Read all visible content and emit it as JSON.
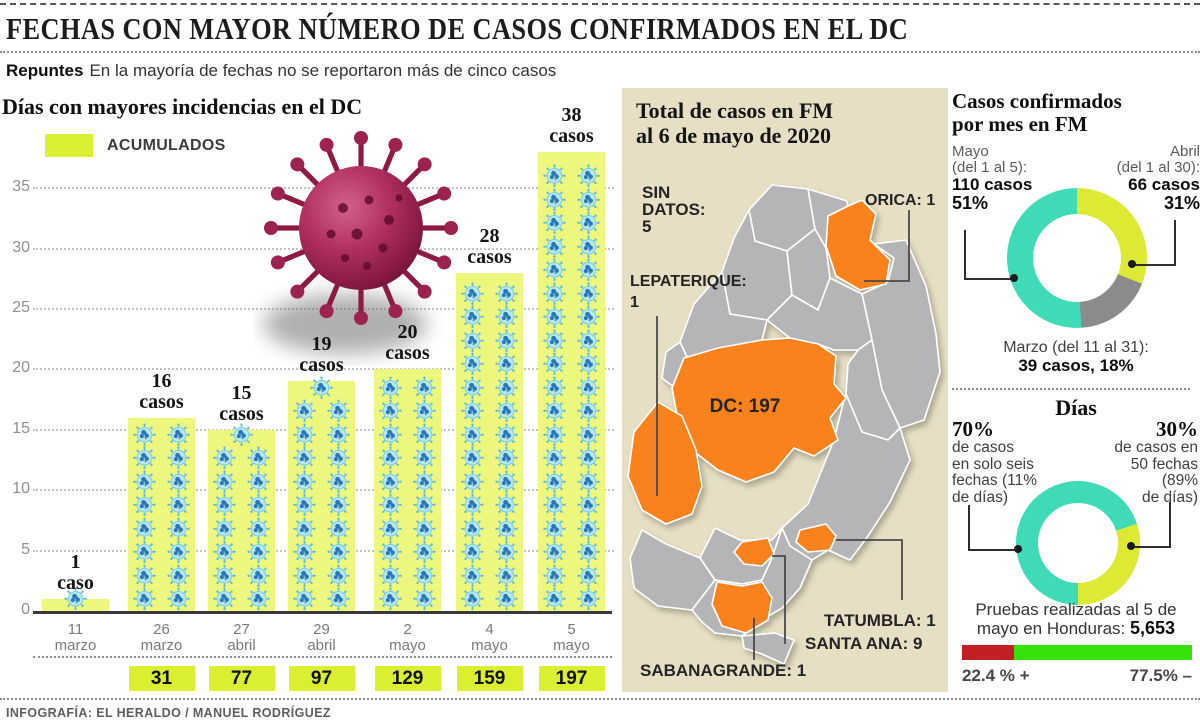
{
  "header": {
    "title": "FECHAS CON MAYOR NÚMERO DE CASOS CONFIRMADOS EN EL DC",
    "subtitle_bold": "Repuntes",
    "subtitle_rest": "En la mayoría de fechas no se reportaron más de cinco casos"
  },
  "colors": {
    "bar_fill": "#edf77d",
    "highlight_yellow": "#d9ef2f",
    "donut_teal": "#3edbb6",
    "donut_yellow": "#dcea33",
    "donut_gray": "#8b8b8b",
    "map_orange": "#f9821d",
    "map_gray": "#b5b5b7",
    "map_background": "#e6dfc4",
    "tests_positive_red": "#c32026",
    "tests_negative_green": "#35e20a"
  },
  "chart_data": [
    {
      "type": "bar",
      "title": "Días con mayores incidencias en el DC",
      "legend": "ACUMULADOS",
      "ylim": [
        0,
        35
      ],
      "yticks": [
        0,
        5,
        10,
        15,
        20,
        25,
        30,
        35
      ],
      "grid": "dotted-horizontal",
      "bar_color": "#edf77d",
      "icon": "virus-icon",
      "bars": [
        {
          "day": "11",
          "month": "marzo",
          "value": 1,
          "label": [
            "1",
            "caso"
          ],
          "cumulative": null
        },
        {
          "day": "26",
          "month": "marzo",
          "value": 16,
          "label": [
            "16",
            "casos"
          ],
          "cumulative": "31"
        },
        {
          "day": "27",
          "month": "abril",
          "value": 15,
          "label": [
            "15",
            "casos"
          ],
          "cumulative": "77"
        },
        {
          "day": "29",
          "month": "abril",
          "value": 19,
          "label": [
            "19",
            "casos"
          ],
          "cumulative": "97"
        },
        {
          "day": "2",
          "month": "mayo",
          "value": 20,
          "label": [
            "20",
            "casos"
          ],
          "cumulative": "129"
        },
        {
          "day": "4",
          "month": "mayo",
          "value": 28,
          "label": [
            "28",
            "casos"
          ],
          "cumulative": "159"
        },
        {
          "day": "5",
          "month": "mayo",
          "value": 38,
          "label": [
            "38",
            "casos"
          ],
          "cumulative": "197"
        }
      ]
    },
    {
      "type": "donut",
      "title": "Casos confirmados por mes en FM",
      "slices": [
        {
          "label": "Mayo (del 1 al 5)",
          "cases": 110,
          "pct": 51,
          "color": "#3edbb6"
        },
        {
          "label": "Abril (del 1 al 30)",
          "cases": 66,
          "pct": 31,
          "color": "#dcea33"
        },
        {
          "label": "Marzo (del 11 al 31)",
          "cases": 39,
          "pct": 18,
          "color": "#8b8b8b"
        }
      ],
      "segments_clockwise_from_top": [
        {
          "pct": 31,
          "color": "#dcea33"
        },
        {
          "pct": 18,
          "color": "#8b8b8b"
        },
        {
          "pct": 51,
          "color": "#3edbb6"
        }
      ]
    },
    {
      "type": "donut",
      "title": "Días",
      "slices": [
        {
          "label": "70% de casos en solo seis fechas (11% de días)",
          "pct": 70,
          "color": "#3edbb6"
        },
        {
          "label": "30% de casos en 50 fechas (89% de días)",
          "pct": 30,
          "color": "#dcea33"
        }
      ],
      "segments_clockwise_from_top": [
        {
          "pct": 20,
          "color": "#3edbb6"
        },
        {
          "pct": 30,
          "color": "#dcea33"
        },
        {
          "pct": 50,
          "color": "#3edbb6"
        }
      ]
    },
    {
      "type": "bar",
      "orientation": "horizontal-stacked",
      "title": "Pruebas realizadas al 5 de mayo en Honduras: 5,653",
      "segments": [
        {
          "label": "22.4 % +",
          "pct": 22.4,
          "color": "#c32026"
        },
        {
          "label": "77.5% –",
          "pct": 77.5,
          "color": "#35e20a"
        }
      ]
    }
  ],
  "map": {
    "title_l1": "Total de casos en FM",
    "title_l2": "al 6 de mayo de 2020",
    "labels": {
      "sin_datos_l1": "SIN",
      "sin_datos_l2": "DATOS:",
      "sin_datos_l3": "5",
      "orica": "ORICA: 1",
      "lepaterique_l1": "LEPATERIQUE:",
      "lepaterique_l2": "1",
      "dc": "DC: 197",
      "tatumbla": "TATUMBLA: 1",
      "santa_ana": "SANTA ANA: 9",
      "sabanagrande": "SABANAGRANDE: 1"
    }
  },
  "monthly": {
    "heading_l1": "Casos confirmados",
    "heading_l2": "por mes en FM",
    "mayo": {
      "l1": "Mayo",
      "l2": "(del 1 al 5):",
      "l3": "110 casos",
      "l4": "51%"
    },
    "abril": {
      "l1": "Abril",
      "l2": "(del 1 al 30):",
      "l3": "66 casos",
      "l4": "31%"
    },
    "marzo": {
      "l1": "Marzo (del 11 al 31):",
      "l2": "39 casos, 18%"
    }
  },
  "dias": {
    "heading": "Días",
    "left": {
      "pct": "70%",
      "l1": "de casos",
      "l2": "en solo seis",
      "l3": "fechas (11%",
      "l4": "de días)"
    },
    "right": {
      "pct": "30%",
      "l1": "de casos en",
      "l2": "50 fechas",
      "l3": "(89%",
      "l4": "de días)"
    }
  },
  "pruebas": {
    "l1": "Pruebas realizadas al 5 de",
    "l2_prefix": "mayo en Honduras: ",
    "value": "5,653",
    "pos_label": "22.4 % +",
    "neg_label": "77.5% –"
  },
  "footer": {
    "credit": "INFOGRAFÍA: EL HERALDO / MANUEL RODRÍGUEZ"
  }
}
